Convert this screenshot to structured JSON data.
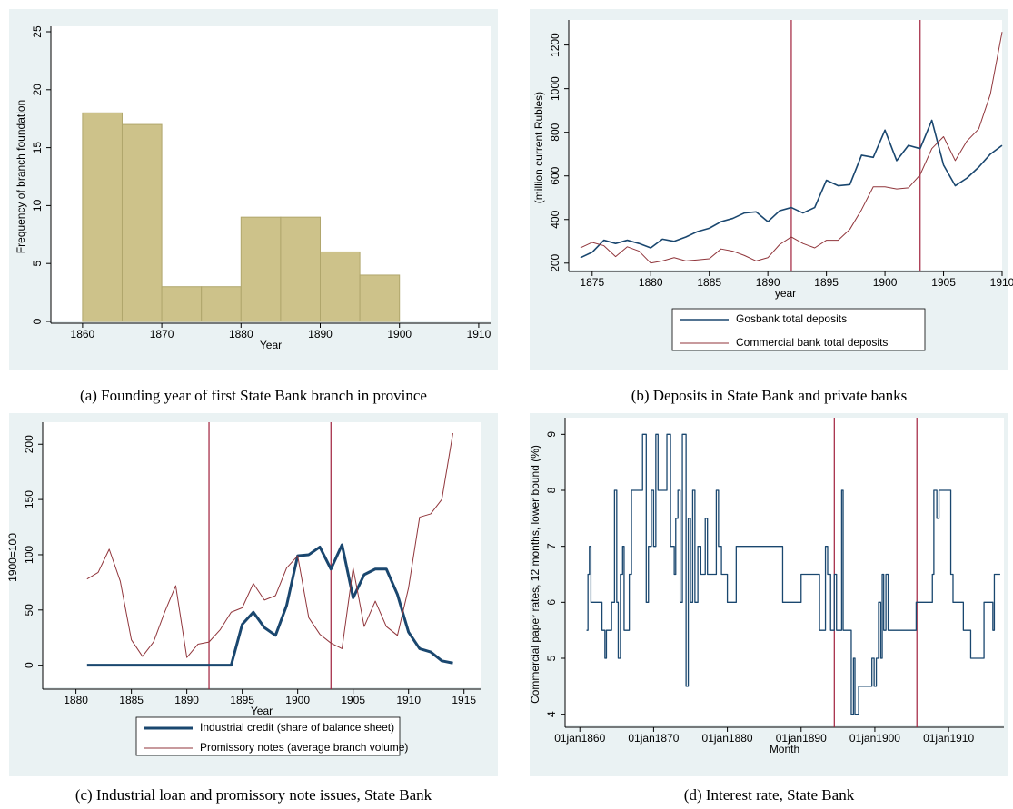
{
  "chart_data": [
    {
      "type": "histogram",
      "caption": "(a) Founding year of first State Bank branch in province",
      "xlabel": "Year",
      "ylabel": "Frequency of branch foundation",
      "bins": [
        1860,
        1865,
        1870,
        1875,
        1880,
        1885,
        1890,
        1895,
        1900
      ],
      "values": [
        18,
        17,
        3,
        3,
        9,
        9,
        6,
        4
      ],
      "color": "#cdc28a",
      "edgecolor": "#b0a66c",
      "xlim": [
        1856,
        1911.5
      ],
      "xticks": [
        1860,
        1870,
        1880,
        1890,
        1900,
        1910
      ],
      "ylim": [
        0,
        25
      ],
      "yticks": [
        0,
        5,
        10,
        15,
        20,
        25
      ]
    },
    {
      "type": "line",
      "caption": "(b) Deposits in State Bank and private banks",
      "xlabel": "year",
      "ylabel": "(million current Rubles)",
      "x": [
        1874,
        1875,
        1876,
        1877,
        1878,
        1879,
        1880,
        1881,
        1882,
        1883,
        1884,
        1885,
        1886,
        1887,
        1888,
        1889,
        1890,
        1891,
        1892,
        1893,
        1894,
        1895,
        1896,
        1897,
        1898,
        1899,
        1900,
        1901,
        1902,
        1903,
        1904,
        1905,
        1906,
        1907,
        1908,
        1909,
        1910
      ],
      "series": [
        {
          "name": "Gosbank total deposits",
          "color": "#1a476f",
          "line_width": 1.6,
          "values": [
            225,
            250,
            305,
            290,
            305,
            290,
            270,
            310,
            300,
            320,
            345,
            360,
            390,
            405,
            430,
            435,
            390,
            440,
            455,
            430,
            455,
            580,
            555,
            560,
            695,
            685,
            810,
            670,
            740,
            725,
            855,
            650,
            555,
            590,
            640,
            700,
            740
          ]
        },
        {
          "name": "Commercial bank total deposits",
          "color": "#90353b",
          "line_width": 1,
          "values": [
            270,
            295,
            280,
            230,
            275,
            255,
            200,
            210,
            225,
            210,
            215,
            220,
            265,
            255,
            235,
            210,
            225,
            285,
            320,
            290,
            270,
            305,
            305,
            355,
            445,
            550,
            550,
            540,
            545,
            605,
            725,
            780,
            670,
            760,
            815,
            975,
            1260
          ]
        }
      ],
      "vlines": [
        1892,
        1903
      ],
      "vline_color": "#a0203c",
      "xlim": [
        1873,
        1910
      ],
      "xticks": [
        1875,
        1880,
        1885,
        1890,
        1895,
        1900,
        1905,
        1910
      ],
      "ylim": [
        170,
        1290
      ],
      "yticks": [
        200,
        400,
        600,
        800,
        1000,
        1200
      ]
    },
    {
      "type": "line",
      "caption": "(c) Industrial loan and promissory note issues, State Bank",
      "xlabel": "Year",
      "ylabel": "1900=100",
      "x": [
        1881,
        1882,
        1883,
        1884,
        1885,
        1886,
        1887,
        1888,
        1889,
        1890,
        1891,
        1892,
        1893,
        1894,
        1895,
        1896,
        1897,
        1898,
        1899,
        1900,
        1901,
        1902,
        1903,
        1904,
        1905,
        1906,
        1907,
        1908,
        1909,
        1910,
        1911,
        1912,
        1913,
        1914
      ],
      "series": [
        {
          "name": "Industrial credit (share of balance sheet)",
          "color": "#1a476f",
          "line_width": 3,
          "values": [
            0,
            0,
            0,
            0,
            0,
            0,
            0,
            0,
            0,
            0,
            0,
            0,
            0,
            0,
            37,
            48,
            34,
            27,
            54,
            99,
            100,
            107,
            87,
            109,
            61,
            82,
            87,
            87,
            64,
            30,
            15,
            12,
            4,
            2
          ]
        },
        {
          "name": "Promissory notes (average branch volume)",
          "color": "#90353b",
          "line_width": 1,
          "values": [
            78,
            84,
            105,
            76,
            23,
            8,
            21,
            48,
            72,
            7,
            19,
            21,
            32,
            48,
            52,
            74,
            59,
            63,
            88,
            99,
            43,
            28,
            20,
            15,
            88,
            35,
            58,
            35,
            27,
            70,
            134,
            137,
            150,
            210
          ]
        }
      ],
      "vlines": [
        1892,
        1903
      ],
      "vline_color": "#a0203c",
      "xlim": [
        1877,
        1916.5
      ],
      "xticks": [
        1880,
        1885,
        1890,
        1895,
        1900,
        1905,
        1910,
        1915
      ],
      "ylim": [
        -20,
        215
      ],
      "yticks": [
        0,
        50,
        100,
        150,
        200
      ]
    },
    {
      "type": "line",
      "caption": "(d) Interest rate, State Bank",
      "drawstyle": "steps-post",
      "xlabel": "Month",
      "ylabel": "Commercial paper rates, 12 months, lower bound (%)",
      "x": [
        1860.9,
        1861.1,
        1861.3,
        1861.5,
        1863.0,
        1863.4,
        1863.6,
        1864.3,
        1864.7,
        1865.0,
        1865.2,
        1865.5,
        1865.8,
        1866.0,
        1866.7,
        1867.0,
        1868.5,
        1869.0,
        1869.3,
        1869.7,
        1870.0,
        1870.3,
        1870.6,
        1871.8,
        1872.3,
        1872.8,
        1873.0,
        1873.3,
        1873.6,
        1873.9,
        1874.4,
        1874.7,
        1875.0,
        1875.3,
        1875.6,
        1876.0,
        1876.4,
        1877.0,
        1877.3,
        1878.5,
        1878.8,
        1879.2,
        1880.0,
        1881.2,
        1887.5,
        1890.0,
        1892.5,
        1893.3,
        1893.6,
        1894.0,
        1894.5,
        1894.8,
        1895.5,
        1895.7,
        1896.8,
        1897.1,
        1897.3,
        1897.8,
        1899.6,
        1899.9,
        1900.2,
        1900.5,
        1900.8,
        1901.0,
        1901.2,
        1901.5,
        1901.8,
        1905.6,
        1907.8,
        1908.0,
        1908.4,
        1908.7,
        1910.3,
        1910.6,
        1912.0,
        1913.0,
        1914.8,
        1916.0,
        1916.2,
        1917.0
      ],
      "series": [
        {
          "name": "Commercial paper rates",
          "color": "#1a476f",
          "line_width": 1.3,
          "values": [
            5.5,
            6.5,
            7,
            6,
            5.5,
            5,
            5.5,
            6,
            8,
            6,
            5,
            6.5,
            7,
            5.5,
            6.5,
            8,
            9,
            6,
            7,
            8,
            7,
            9,
            8,
            9,
            7,
            6.5,
            7.5,
            8,
            6,
            9,
            4.5,
            7.5,
            6,
            8,
            6,
            7,
            6.5,
            7.5,
            6.5,
            8,
            7,
            6.5,
            6,
            7,
            6,
            6.5,
            5.5,
            7,
            6.5,
            5.5,
            6.5,
            5.5,
            8,
            5.5,
            4,
            5,
            4,
            4.5,
            5,
            4.5,
            5,
            6,
            5,
            6.5,
            5.5,
            6.5,
            5.5,
            6,
            6.5,
            8,
            7.5,
            8,
            6.5,
            6,
            5.5,
            5,
            6,
            5.5,
            6.5,
            6.5
          ]
        }
      ],
      "vlines": [
        1894.5,
        1905.7
      ],
      "vline_color": "#a0203c",
      "xlim": [
        1858,
        1917.5
      ],
      "xticks": [
        {
          "value": 1860,
          "label": "01jan1860"
        },
        {
          "value": 1870,
          "label": "01jan1870"
        },
        {
          "value": 1880,
          "label": "01jan1880"
        },
        {
          "value": 1890,
          "label": "01jan1890"
        },
        {
          "value": 1900,
          "label": "01jan1900"
        },
        {
          "value": 1910,
          "label": "01jan1910"
        }
      ],
      "ylim": [
        3.8,
        9.2
      ],
      "yticks": [
        4,
        5,
        6,
        7,
        8,
        9
      ]
    }
  ]
}
